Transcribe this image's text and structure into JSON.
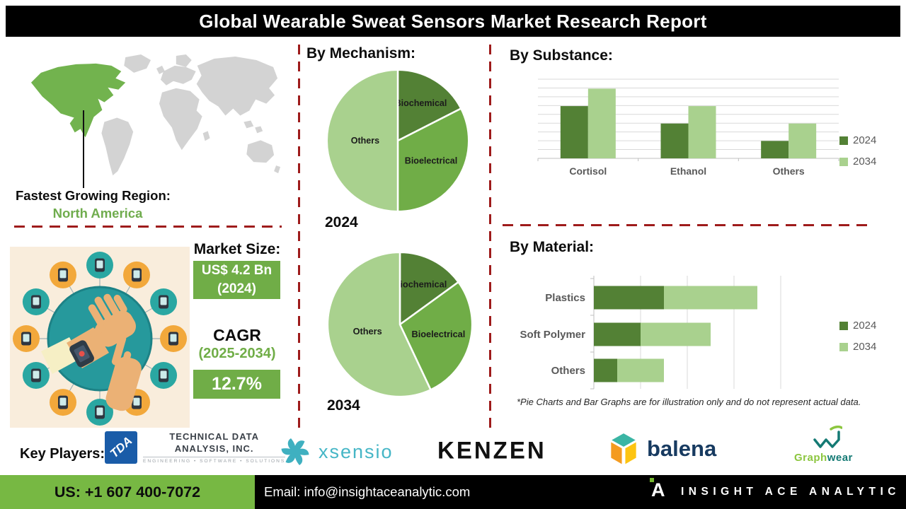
{
  "title": "Global Wearable Sweat Sensors Market Research Report",
  "region": {
    "label": "Fastest Growing Region:",
    "value": "North America"
  },
  "market": {
    "heading": "Market Size:",
    "size_value": "US$ 4.2 Bn",
    "size_year": "(2024)",
    "cagr_label": "CAGR",
    "cagr_period": "(2025-2034)",
    "cagr_value": "12.7%"
  },
  "sections": {
    "mechanism_heading": "By Mechanism:",
    "substance_heading": "By Substance:",
    "material_heading": "By Material:",
    "footnote": "*Pie Charts and Bar Graphs are for illustration only and do not represent actual data."
  },
  "key_players": {
    "label": "Key Players:",
    "tda": {
      "mark": "TDA",
      "line1": "TECHNICAL DATA",
      "line2": "ANALYSIS, INC.",
      "tagline": "ENGINEERING • SOFTWARE • SOLUTIONS"
    },
    "xsensio": "xsensio",
    "kenzen": "KENZEN",
    "balena": "balena",
    "graphwear": {
      "part1": "Graph",
      "part2": "wear"
    }
  },
  "footer": {
    "phone": "US: +1 607 400-7072",
    "email": "Email: info@insightaceanalytic.com",
    "brand": "INSIGHT ACE ANALYTIC",
    "logo_letter": "A"
  },
  "colors": {
    "green_dark": "#538135",
    "green_mid": "#70AD47",
    "green_light": "#A9D18E",
    "accent_red": "#9E1B1B",
    "footer_green": "#77B843",
    "na_map_green": "#72B34E",
    "na_text_green": "#6FAC4D",
    "title_bar": "#000000"
  },
  "chart_data": [
    {
      "type": "pie",
      "group": "By Mechanism",
      "year": "2024",
      "unit": "percent",
      "note": "illustrative",
      "slices": [
        {
          "label": "Biochemical",
          "percent": 17.5,
          "color": "#538135"
        },
        {
          "label": "Bioelectrical",
          "percent": 32.5,
          "color": "#70AD47"
        },
        {
          "label": "Others",
          "percent": 50,
          "color": "#A9D18E"
        }
      ]
    },
    {
      "type": "pie",
      "group": "By Mechanism",
      "year": "2034",
      "unit": "percent",
      "note": "illustrative",
      "slices": [
        {
          "label": "Biochemical",
          "percent": 15,
          "color": "#538135"
        },
        {
          "label": "Bioelectrical",
          "percent": 28,
          "color": "#70AD47"
        },
        {
          "label": "Others",
          "percent": 57,
          "color": "#A9D18E"
        }
      ]
    },
    {
      "type": "bar",
      "group": "By Substance",
      "categories": [
        "Cortisol",
        "Ethanol",
        "Others"
      ],
      "series": [
        {
          "name": "2024",
          "color": "#538135",
          "values": [
            66,
            44,
            22
          ]
        },
        {
          "name": "2034",
          "color": "#A9D18E",
          "values": [
            88,
            66,
            44
          ]
        }
      ],
      "ylim": [
        0,
        100
      ],
      "grid": true,
      "legend_position": "right",
      "note": "illustrative"
    },
    {
      "type": "bar",
      "subtype": "horizontal-stacked",
      "group": "By Material",
      "categories": [
        "Plastics",
        "Soft Polymer",
        "Others"
      ],
      "series": [
        {
          "name": "2024",
          "color": "#538135",
          "values": [
            30,
            20,
            10
          ]
        },
        {
          "name": "2034",
          "color": "#A9D18E",
          "values": [
            40,
            30,
            20
          ]
        }
      ],
      "xlim": [
        0,
        100
      ],
      "grid": true,
      "legend_position": "right",
      "note": "illustrative"
    }
  ]
}
